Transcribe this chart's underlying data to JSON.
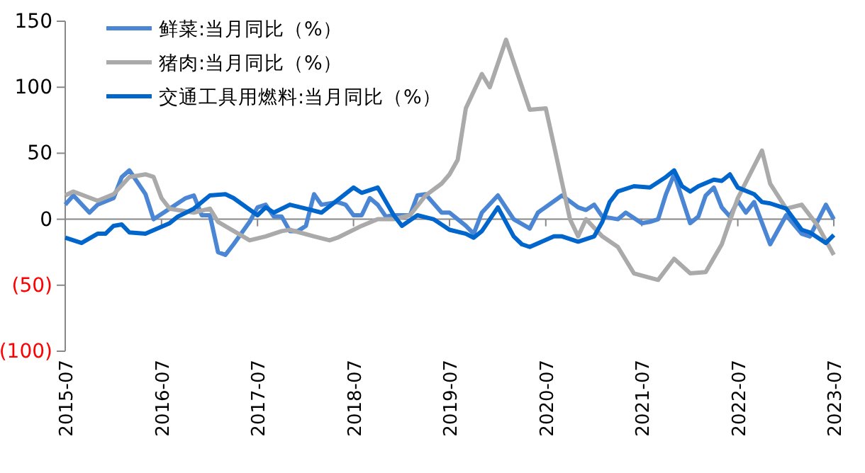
{
  "chart_data": {
    "type": "line",
    "xlim": [
      "2015-07",
      "2023-07"
    ],
    "xticks": [
      "2015-07",
      "2016-07",
      "2017-07",
      "2018-07",
      "2019-07",
      "2020-07",
      "2021-07",
      "2022-07",
      "2023-07"
    ],
    "ylim": [
      -100,
      150
    ],
    "yticks": [
      150,
      100,
      50,
      0,
      {
        "value": -50,
        "label": "(50)"
      },
      {
        "value": -100,
        "label": "(100)"
      }
    ],
    "legend": "top",
    "marker": "none",
    "line_style": "solid",
    "series": [
      {
        "name": "鲜菜:当月同比（%）",
        "color": "#4a86d4",
        "x": [
          "2015-07",
          "2015-08",
          "2015-10",
          "2015-11",
          "2016-01",
          "2016-02",
          "2016-03",
          "2016-05",
          "2016-06",
          "2016-08",
          "2016-10",
          "2016-11",
          "2016-12",
          "2017-01",
          "2017-02",
          "2017-03",
          "2017-04",
          "2017-06",
          "2017-07",
          "2017-08",
          "2017-09",
          "2017-10",
          "2017-11",
          "2017-12",
          "2018-01",
          "2018-02",
          "2018-03",
          "2018-05",
          "2018-06",
          "2018-07",
          "2018-08",
          "2018-09",
          "2018-10",
          "2018-11",
          "2018-12",
          "2019-02",
          "2019-03",
          "2019-04",
          "2019-06",
          "2019-07",
          "2019-08",
          "2019-09",
          "2019-10",
          "2019-11",
          "2020-01",
          "2020-03",
          "2020-05",
          "2020-06",
          "2020-09",
          "2020-11",
          "2020-12",
          "2021-01",
          "2021-02",
          "2021-04",
          "2021-05",
          "2021-07",
          "2021-08",
          "2021-09",
          "2021-10",
          "2021-11",
          "2022-01",
          "2022-02",
          "2022-03",
          "2022-04",
          "2022-05",
          "2022-06",
          "2022-07",
          "2022-08",
          "2022-09",
          "2022-11",
          "2023-01",
          "2023-03",
          "2023-04",
          "2023-06",
          "2023-07"
        ],
        "values": [
          11,
          18,
          5,
          11,
          16,
          32,
          37,
          19,
          0,
          8,
          16,
          18,
          3,
          3,
          -25,
          -27,
          -19,
          -2,
          9,
          11,
          2,
          2,
          -9,
          -9,
          -5,
          19,
          11,
          13,
          11,
          3,
          3,
          16,
          11,
          2,
          3,
          3,
          18,
          19,
          5,
          5,
          0,
          -5,
          -11,
          5,
          18,
          0,
          -7,
          5,
          18,
          9,
          7,
          11,
          2,
          0,
          5,
          -3,
          -2,
          0,
          19,
          34,
          -3,
          2,
          18,
          24,
          9,
          2,
          14,
          5,
          13,
          -19,
          3,
          -11,
          -13,
          11,
          0
        ]
      },
      {
        "name": "猪肉:当月同比（%）",
        "color": "#aaaaaa",
        "x": [
          "2015-07",
          "2015-08",
          "2015-11",
          "2016-01",
          "2016-03",
          "2016-05",
          "2016-06",
          "2016-07",
          "2016-08",
          "2016-11",
          "2017-01",
          "2017-02",
          "2017-06",
          "2017-08",
          "2017-10",
          "2017-11",
          "2018-02",
          "2018-04",
          "2018-05",
          "2018-08",
          "2018-10",
          "2018-12",
          "2019-02",
          "2019-04",
          "2019-06",
          "2019-07",
          "2019-08",
          "2019-09",
          "2019-11",
          "2019-12",
          "2020-02",
          "2020-05",
          "2020-07",
          "2020-08",
          "2020-10",
          "2020-11",
          "2020-12",
          "2021-02",
          "2021-04",
          "2021-06",
          "2021-09",
          "2021-11",
          "2022-01",
          "2022-03",
          "2022-05",
          "2022-07",
          "2022-10",
          "2022-11",
          "2023-01",
          "2023-03",
          "2023-05",
          "2023-07"
        ],
        "values": [
          18,
          21,
          14,
          19,
          32,
          34,
          32,
          16,
          8,
          5,
          8,
          -2,
          -16,
          -13,
          -9,
          -8,
          -13,
          -16,
          -14,
          -5,
          0,
          0,
          3,
          18,
          27,
          34,
          45,
          84,
          110,
          100,
          136,
          83,
          84,
          56,
          0,
          -13,
          0,
          -13,
          -21,
          -41,
          -46,
          -30,
          -41,
          -40,
          -19,
          16,
          52,
          27,
          8,
          11,
          -5,
          -27
        ]
      },
      {
        "name": "交通工具用燃料:当月同比（%）",
        "color": "#0066cc",
        "x": [
          "2015-07",
          "2015-09",
          "2015-11",
          "2015-12",
          "2016-01",
          "2016-02",
          "2016-03",
          "2016-05",
          "2016-08",
          "2016-09",
          "2016-11",
          "2017-01",
          "2017-03",
          "2017-04",
          "2017-07",
          "2017-08",
          "2017-09",
          "2017-11",
          "2018-01",
          "2018-03",
          "2018-07",
          "2018-08",
          "2018-10",
          "2018-12",
          "2019-01",
          "2019-03",
          "2019-05",
          "2019-07",
          "2019-09",
          "2019-10",
          "2019-11",
          "2020-01",
          "2020-03",
          "2020-04",
          "2020-05",
          "2020-08",
          "2020-09",
          "2020-11",
          "2021-01",
          "2021-02",
          "2021-03",
          "2021-04",
          "2021-06",
          "2021-08",
          "2021-10",
          "2021-11",
          "2021-12",
          "2022-01",
          "2022-02",
          "2022-04",
          "2022-05",
          "2022-06",
          "2022-07",
          "2022-09",
          "2022-10",
          "2022-11",
          "2023-01",
          "2023-03",
          "2023-04",
          "2023-06",
          "2023-07"
        ],
        "values": [
          -14,
          -18,
          -11,
          -11,
          -5,
          -4,
          -10,
          -11,
          -3,
          2,
          8,
          18,
          19,
          16,
          3,
          9,
          5,
          11,
          8,
          5,
          24,
          20,
          24,
          3,
          -5,
          3,
          0,
          -8,
          -11,
          -14,
          -9,
          9,
          -13,
          -19,
          -21,
          -13,
          -13,
          -17,
          -13,
          -2,
          13,
          21,
          25,
          24,
          32,
          37,
          25,
          21,
          25,
          30,
          29,
          34,
          24,
          19,
          13,
          12,
          8,
          -8,
          -10,
          -18,
          -12
        ]
      }
    ]
  }
}
